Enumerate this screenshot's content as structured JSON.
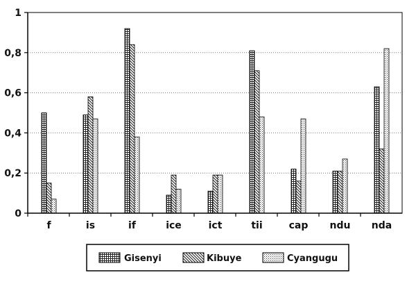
{
  "chart_data": {
    "type": "bar",
    "title": "",
    "xlabel": "",
    "ylabel": "",
    "categories": [
      "f",
      "is",
      "if",
      "ice",
      "ict",
      "tii",
      "cap",
      "ndu",
      "nda"
    ],
    "ylim": [
      0,
      1
    ],
    "yticks": [
      0,
      0.2,
      0.4,
      0.6,
      0.8,
      1
    ],
    "ytick_labels": [
      "0",
      "0,2",
      "0,4",
      "0,6",
      "0,8",
      "1"
    ],
    "grid": "horizontal-dotted",
    "legend_position": "bottom",
    "series": [
      {
        "name": "Gisenyi",
        "pattern": "grid",
        "values": [
          0.5,
          0.49,
          0.92,
          0.09,
          0.11,
          0.81,
          0.22,
          0.21,
          0.63
        ]
      },
      {
        "name": "Kibuye",
        "pattern": "diagonal",
        "values": [
          0.15,
          0.58,
          0.84,
          0.19,
          0.19,
          0.71,
          0.16,
          0.21,
          0.32
        ]
      },
      {
        "name": "Cyangugu",
        "pattern": "dots",
        "values": [
          0.07,
          0.47,
          0.38,
          0.12,
          0.19,
          0.48,
          0.47,
          0.27,
          0.82
        ]
      }
    ]
  }
}
